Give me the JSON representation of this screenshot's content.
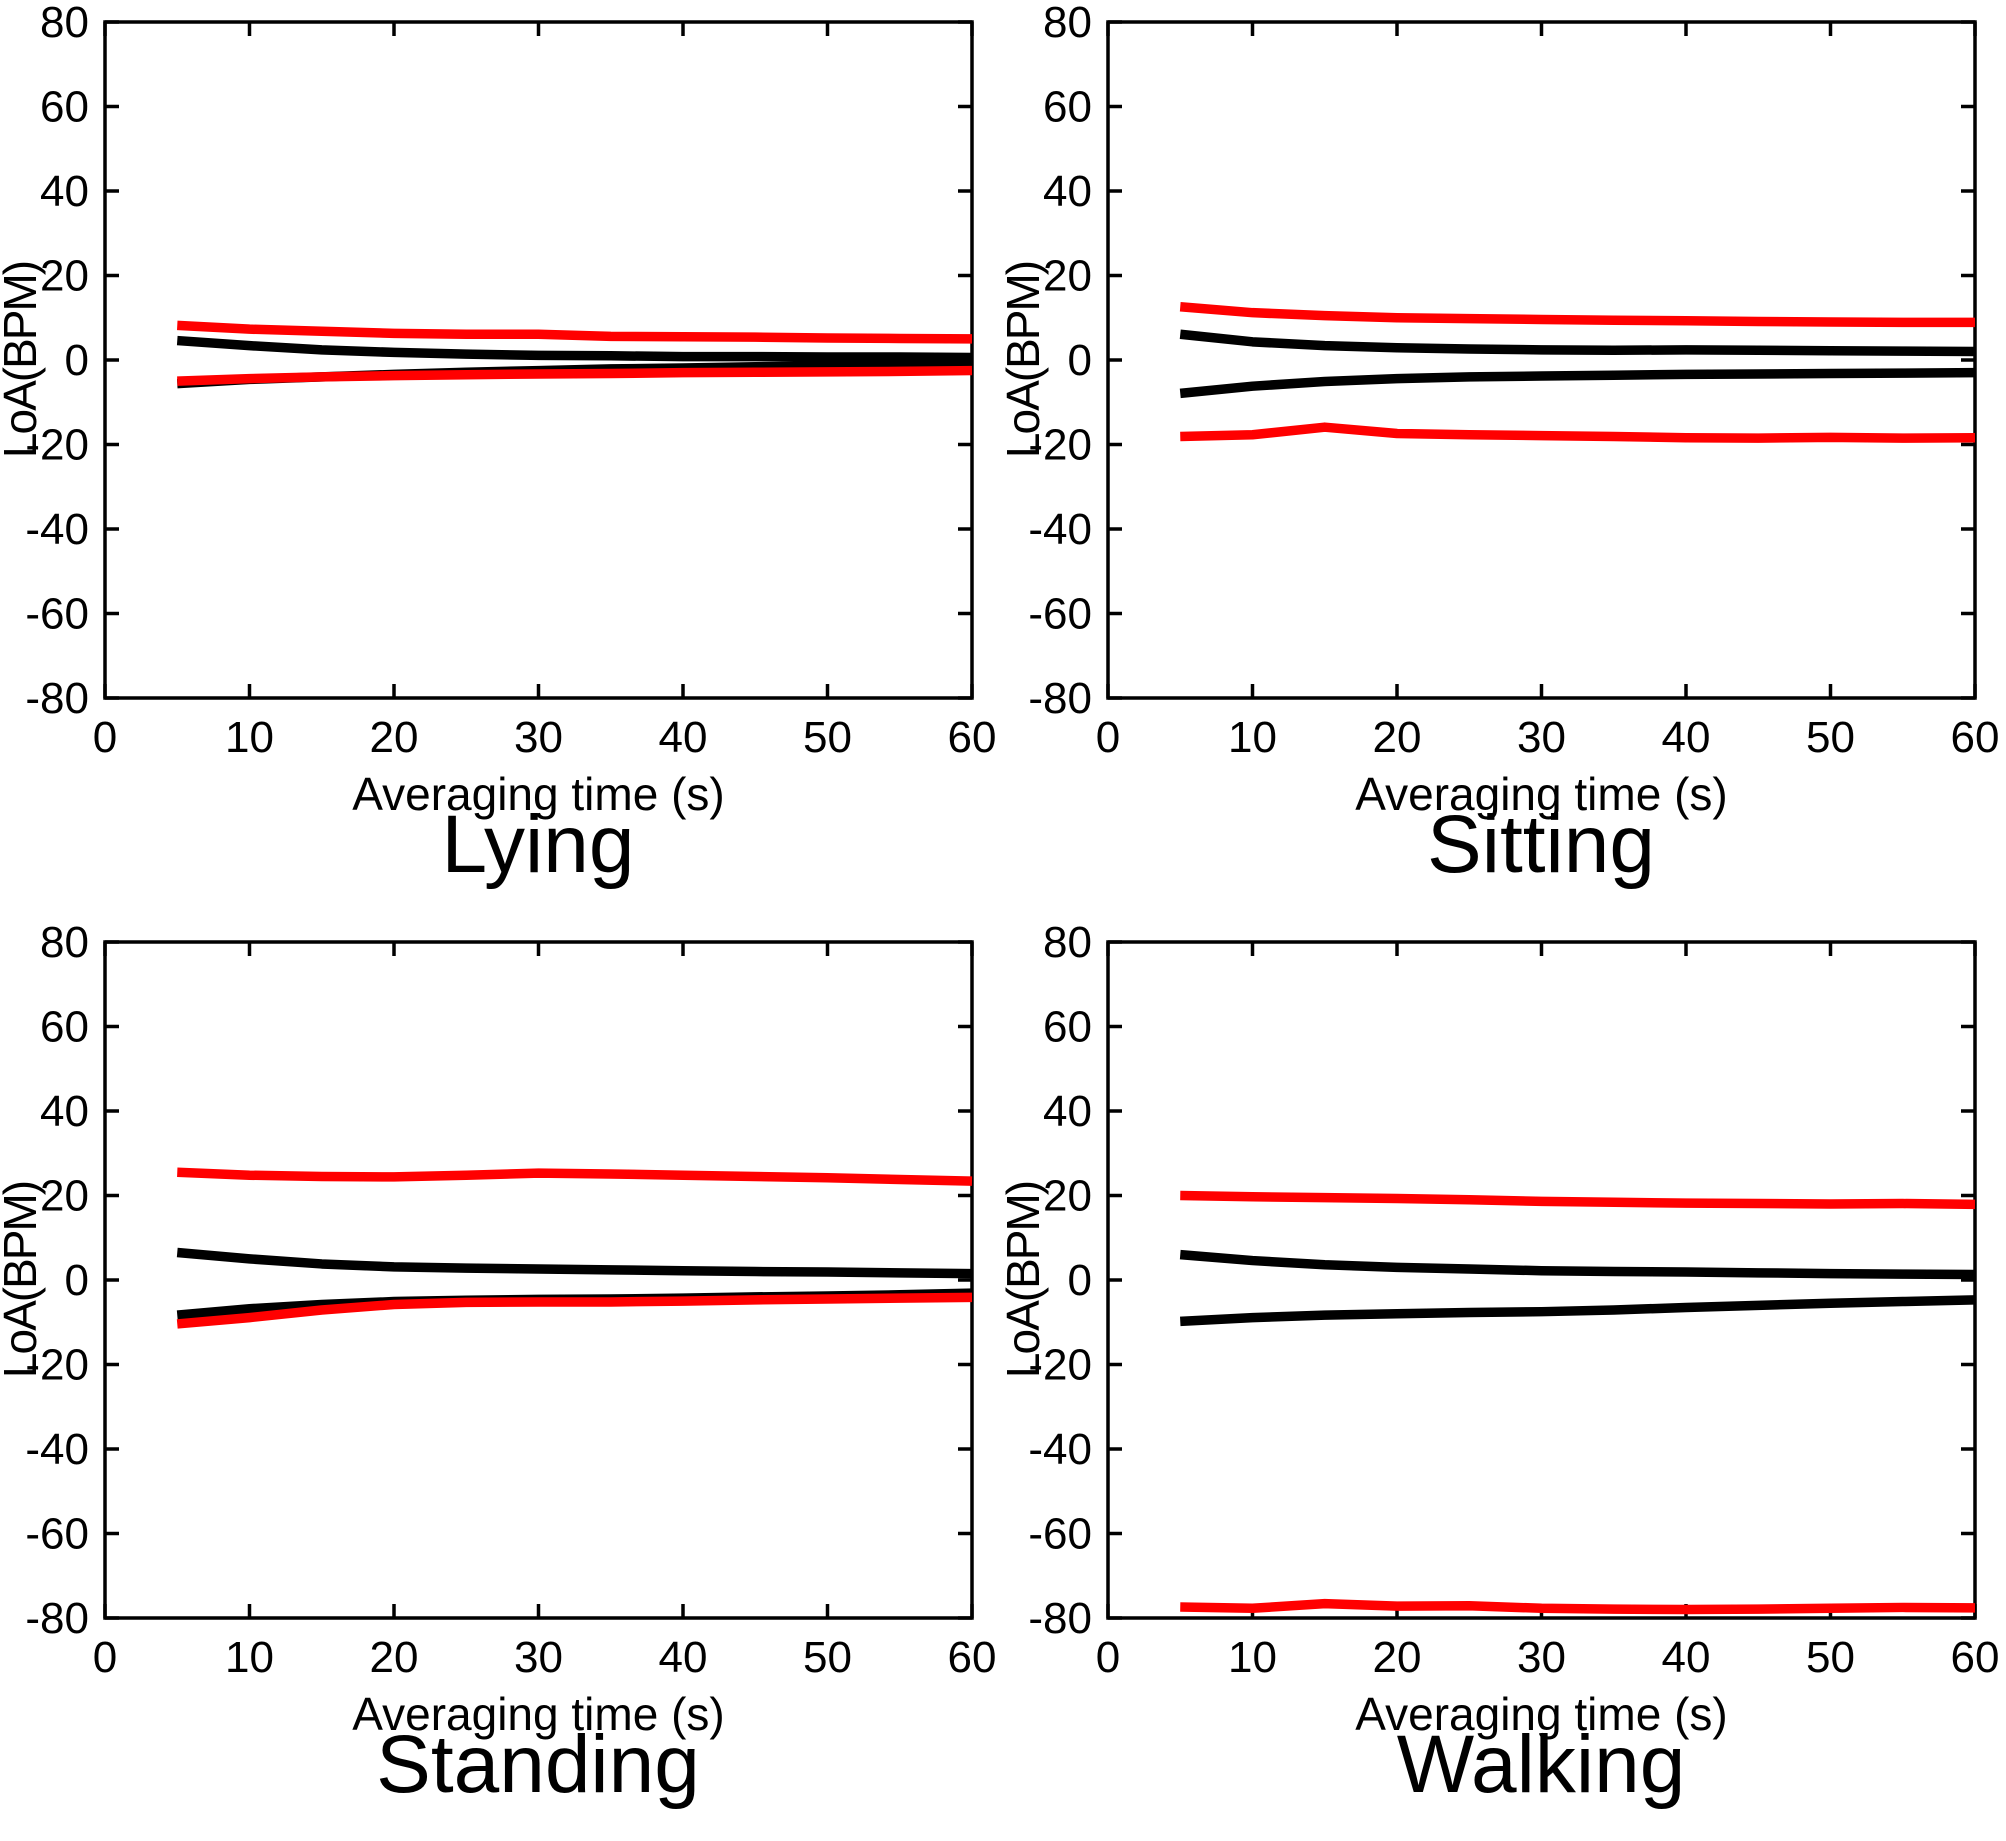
{
  "figure": {
    "background": "#ffffff",
    "axis_color": "#000000",
    "text_color": "#000000",
    "line_colors": {
      "red": "#ff0000",
      "black": "#000000"
    }
  },
  "chart_data": [
    {
      "type": "line",
      "title": "Lying",
      "xlabel": "Averaging time (s)",
      "ylabel": "LoA(BPM)",
      "xlim": [
        0,
        60
      ],
      "ylim": [
        -80,
        80
      ],
      "xticks": [
        0,
        10,
        20,
        30,
        40,
        50,
        60
      ],
      "yticks": [
        -80,
        -60,
        -40,
        -20,
        0,
        20,
        40,
        60,
        80
      ],
      "grid": false,
      "legend_position": "none",
      "x": [
        5,
        10,
        15,
        20,
        25,
        30,
        35,
        40,
        45,
        50,
        55,
        60
      ],
      "series": [
        {
          "name": "black-upper",
          "color": "#000000",
          "values": [
            4.6,
            3.4,
            2.4,
            1.8,
            1.4,
            1.1,
            1.0,
            0.8,
            0.8,
            0.7,
            0.7,
            0.6
          ]
        },
        {
          "name": "black-lower",
          "color": "#000000",
          "values": [
            -5.6,
            -4.6,
            -4.0,
            -3.4,
            -2.9,
            -2.5,
            -2.1,
            -1.9,
            -1.6,
            -1.4,
            -1.3,
            -1.1
          ]
        },
        {
          "name": "red-upper",
          "color": "#ff0000",
          "values": [
            8.2,
            7.3,
            6.8,
            6.3,
            6.1,
            6.1,
            5.6,
            5.5,
            5.4,
            5.2,
            5.1,
            5.0
          ]
        },
        {
          "name": "red-lower",
          "color": "#ff0000",
          "values": [
            -5.0,
            -4.4,
            -4.0,
            -3.7,
            -3.5,
            -3.3,
            -3.2,
            -3.0,
            -2.9,
            -2.8,
            -2.7,
            -2.5
          ]
        }
      ]
    },
    {
      "type": "line",
      "title": "Sitting",
      "xlabel": "Averaging time (s)",
      "ylabel": "LoA(BPM)",
      "xlim": [
        0,
        60
      ],
      "ylim": [
        -80,
        80
      ],
      "xticks": [
        0,
        10,
        20,
        30,
        40,
        50,
        60
      ],
      "yticks": [
        -80,
        -60,
        -40,
        -20,
        0,
        20,
        40,
        60,
        80
      ],
      "grid": false,
      "legend_position": "none",
      "x": [
        5,
        10,
        15,
        20,
        25,
        30,
        35,
        40,
        45,
        50,
        55,
        60
      ],
      "series": [
        {
          "name": "black-upper",
          "color": "#000000",
          "values": [
            6.1,
            4.3,
            3.4,
            2.9,
            2.6,
            2.4,
            2.3,
            2.4,
            2.3,
            2.2,
            2.1,
            2.0
          ]
        },
        {
          "name": "black-lower",
          "color": "#000000",
          "values": [
            -7.9,
            -6.2,
            -5.1,
            -4.4,
            -4.0,
            -3.8,
            -3.6,
            -3.4,
            -3.3,
            -3.2,
            -3.1,
            -3.0
          ]
        },
        {
          "name": "red-upper",
          "color": "#ff0000",
          "values": [
            12.6,
            11.2,
            10.5,
            10.0,
            9.8,
            9.6,
            9.4,
            9.3,
            9.1,
            9.0,
            8.9,
            8.9
          ]
        },
        {
          "name": "red-lower",
          "color": "#ff0000",
          "values": [
            -18.1,
            -17.7,
            -15.9,
            -17.4,
            -17.7,
            -17.9,
            -18.1,
            -18.4,
            -18.5,
            -18.3,
            -18.5,
            -18.4
          ]
        }
      ]
    },
    {
      "type": "line",
      "title": "Standing",
      "xlabel": "Averaging time (s)",
      "ylabel": "LoA(BPM)",
      "xlim": [
        0,
        60
      ],
      "ylim": [
        -80,
        80
      ],
      "xticks": [
        0,
        10,
        20,
        30,
        40,
        50,
        60
      ],
      "yticks": [
        -80,
        -60,
        -40,
        -20,
        0,
        20,
        40,
        60,
        80
      ],
      "grid": false,
      "legend_position": "none",
      "x": [
        5,
        10,
        15,
        20,
        25,
        30,
        35,
        40,
        45,
        50,
        55,
        60
      ],
      "series": [
        {
          "name": "black-upper",
          "color": "#000000",
          "values": [
            6.5,
            5.0,
            3.8,
            3.1,
            2.8,
            2.6,
            2.4,
            2.2,
            2.0,
            1.9,
            1.7,
            1.5
          ]
        },
        {
          "name": "black-lower",
          "color": "#000000",
          "values": [
            -8.3,
            -6.8,
            -5.8,
            -5.1,
            -4.8,
            -4.6,
            -4.5,
            -4.3,
            -4.0,
            -3.8,
            -3.5,
            -3.1
          ]
        },
        {
          "name": "red-upper",
          "color": "#ff0000",
          "values": [
            25.5,
            24.8,
            24.5,
            24.4,
            24.8,
            25.3,
            25.1,
            24.8,
            24.5,
            24.2,
            23.8,
            23.4
          ]
        },
        {
          "name": "red-lower",
          "color": "#ff0000",
          "values": [
            -10.4,
            -8.9,
            -7.1,
            -5.8,
            -5.3,
            -5.2,
            -5.2,
            -5.0,
            -4.7,
            -4.5,
            -4.3,
            -4.1
          ]
        }
      ]
    },
    {
      "type": "line",
      "title": "Walking",
      "xlabel": "Averaging time (s)",
      "ylabel": "LoA(BPM)",
      "xlim": [
        0,
        60
      ],
      "ylim": [
        -80,
        80
      ],
      "xticks": [
        0,
        10,
        20,
        30,
        40,
        50,
        60
      ],
      "yticks": [
        -80,
        -60,
        -40,
        -20,
        0,
        20,
        40,
        60,
        80
      ],
      "grid": false,
      "legend_position": "none",
      "x": [
        5,
        10,
        15,
        20,
        25,
        30,
        35,
        40,
        45,
        50,
        55,
        60
      ],
      "series": [
        {
          "name": "black-upper",
          "color": "#000000",
          "values": [
            6.0,
            4.6,
            3.6,
            3.0,
            2.6,
            2.2,
            2.0,
            1.9,
            1.7,
            1.5,
            1.4,
            1.3
          ]
        },
        {
          "name": "black-lower",
          "color": "#000000",
          "values": [
            -9.8,
            -8.9,
            -8.3,
            -8.0,
            -7.7,
            -7.5,
            -7.1,
            -6.5,
            -6.0,
            -5.5,
            -5.1,
            -4.7
          ]
        },
        {
          "name": "red-upper",
          "color": "#ff0000",
          "values": [
            20.0,
            19.7,
            19.5,
            19.3,
            19.0,
            18.6,
            18.4,
            18.2,
            18.1,
            18.0,
            18.1,
            17.9
          ]
        },
        {
          "name": "red-lower",
          "color": "#ff0000",
          "values": [
            -77.4,
            -77.7,
            -76.6,
            -77.2,
            -77.1,
            -77.7,
            -77.9,
            -78.0,
            -77.9,
            -77.7,
            -77.5,
            -77.6
          ]
        }
      ]
    }
  ]
}
